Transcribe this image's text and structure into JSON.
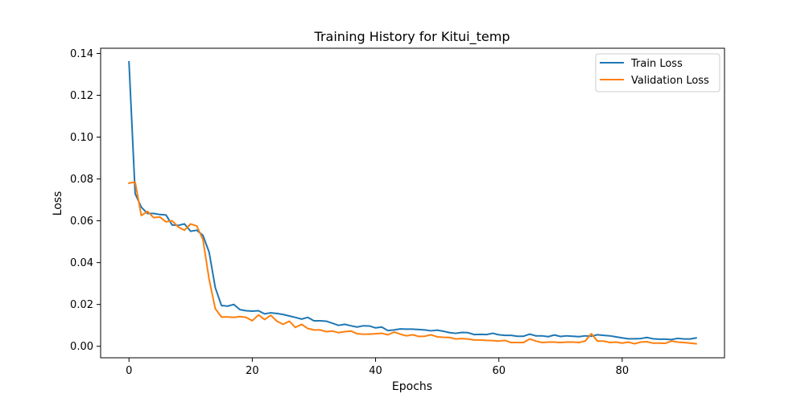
{
  "chart_data": {
    "type": "line",
    "title": "Training History for Kitui_temp",
    "xlabel": "Epochs",
    "ylabel": "Loss",
    "xlim": [
      -4.6,
      96.6
    ],
    "ylim": [
      -0.0055,
      0.1425
    ],
    "xticks": [
      0,
      20,
      40,
      60,
      80
    ],
    "xtick_labels": [
      "0",
      "20",
      "40",
      "60",
      "80"
    ],
    "yticks": [
      0.0,
      0.02,
      0.04,
      0.06,
      0.08,
      0.1,
      0.12,
      0.14
    ],
    "ytick_labels": [
      "0.00",
      "0.02",
      "0.04",
      "0.06",
      "0.08",
      "0.10",
      "0.12",
      "0.14"
    ],
    "grid": false,
    "legend_position": "top-right",
    "series": [
      {
        "name": "Train Loss",
        "color": "#1f77b4",
        "values": [
          0.136,
          0.073,
          0.0665,
          0.0635,
          0.0635,
          0.063,
          0.0628,
          0.058,
          0.0578,
          0.0585,
          0.055,
          0.0555,
          0.053,
          0.045,
          0.028,
          0.0195,
          0.0192,
          0.02,
          0.0175,
          0.017,
          0.0168,
          0.017,
          0.0155,
          0.016,
          0.0157,
          0.0152,
          0.0145,
          0.0138,
          0.013,
          0.0138,
          0.0122,
          0.0122,
          0.012,
          0.011,
          0.01,
          0.0105,
          0.0098,
          0.0092,
          0.0098,
          0.0097,
          0.0088,
          0.0092,
          0.0075,
          0.0078,
          0.0083,
          0.0082,
          0.0082,
          0.008,
          0.0078,
          0.0074,
          0.0077,
          0.0072,
          0.0065,
          0.0062,
          0.0066,
          0.0065,
          0.0056,
          0.0057,
          0.0056,
          0.0062,
          0.0055,
          0.0052,
          0.0052,
          0.0048,
          0.0048,
          0.0058,
          0.005,
          0.005,
          0.0046,
          0.0054,
          0.0047,
          0.005,
          0.0048,
          0.0046,
          0.005,
          0.0048,
          0.0055,
          0.0052,
          0.005,
          0.0045,
          0.004,
          0.0036,
          0.0036,
          0.0037,
          0.0042,
          0.0036,
          0.0034,
          0.0034,
          0.0032,
          0.0038,
          0.0035,
          0.0035,
          0.004
        ]
      },
      {
        "name": "Validation Loss",
        "color": "#ff7f0e",
        "values": [
          0.078,
          0.0785,
          0.0625,
          0.0645,
          0.0615,
          0.0618,
          0.0595,
          0.06,
          0.057,
          0.0555,
          0.0585,
          0.0575,
          0.051,
          0.032,
          0.018,
          0.014,
          0.014,
          0.0138,
          0.0142,
          0.0138,
          0.0122,
          0.015,
          0.0128,
          0.0148,
          0.012,
          0.0105,
          0.012,
          0.009,
          0.0105,
          0.0085,
          0.0078,
          0.0078,
          0.007,
          0.0073,
          0.0065,
          0.007,
          0.0073,
          0.006,
          0.0058,
          0.0058,
          0.006,
          0.0062,
          0.0055,
          0.0068,
          0.0058,
          0.005,
          0.0055,
          0.0047,
          0.0048,
          0.0055,
          0.0045,
          0.0043,
          0.0042,
          0.0035,
          0.0037,
          0.0035,
          0.003,
          0.003,
          0.0028,
          0.0027,
          0.0025,
          0.0028,
          0.0018,
          0.0018,
          0.0018,
          0.0035,
          0.0025,
          0.0018,
          0.002,
          0.002,
          0.0018,
          0.002,
          0.002,
          0.0018,
          0.0025,
          0.006,
          0.0025,
          0.0025,
          0.0018,
          0.002,
          0.0015,
          0.002,
          0.0012,
          0.002,
          0.0022,
          0.0015,
          0.0015,
          0.0014,
          0.0025,
          0.002,
          0.0018,
          0.0015,
          0.0012
        ]
      }
    ]
  }
}
